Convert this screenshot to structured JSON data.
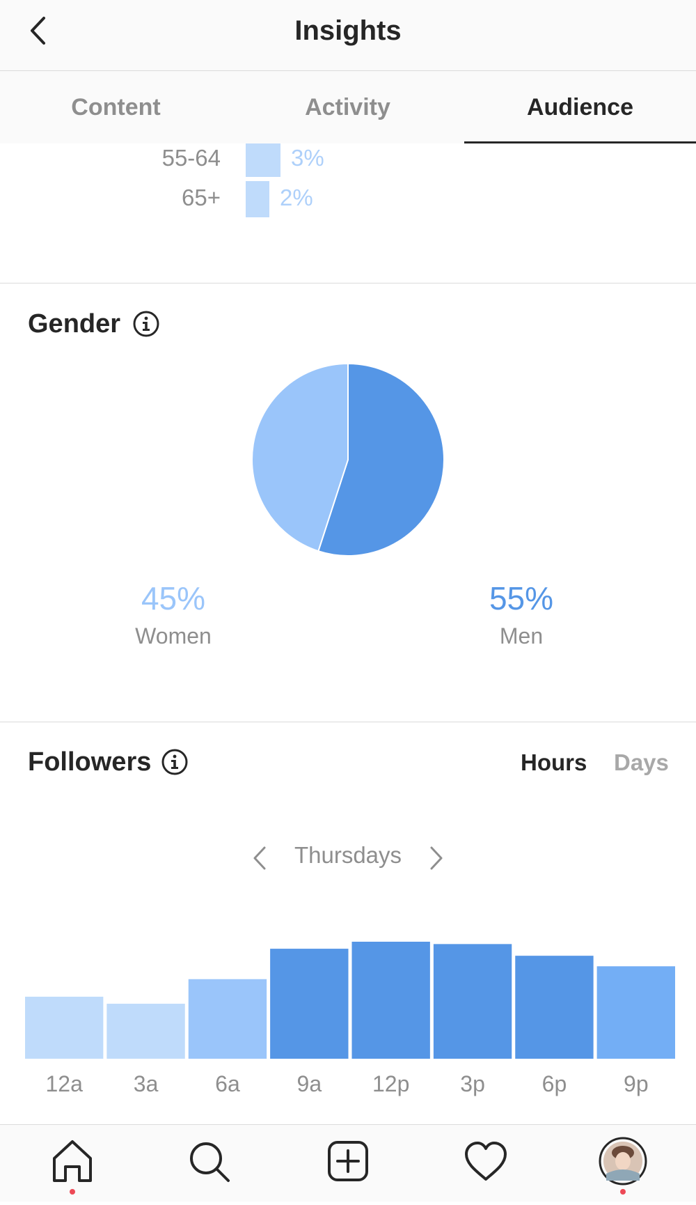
{
  "header": {
    "title": "Insights"
  },
  "tabs": [
    {
      "label": "Content"
    },
    {
      "label": "Activity"
    },
    {
      "label": "Audience",
      "active": true
    }
  ],
  "age_rows": [
    {
      "label": "55-64",
      "value": "3%"
    },
    {
      "label": "65+",
      "value": "2%"
    }
  ],
  "gender": {
    "title": "Gender",
    "women": {
      "pct": "45%",
      "label": "Women"
    },
    "men": {
      "pct": "55%",
      "label": "Men"
    }
  },
  "followers": {
    "title": "Followers",
    "toggle": {
      "hours": "Hours",
      "days": "Days",
      "selected": "Hours"
    },
    "day": "Thursdays"
  },
  "chart_data": [
    {
      "type": "pie",
      "categories": [
        "Women",
        "Men"
      ],
      "values": [
        45,
        55
      ],
      "colors": [
        "#9ac5fa",
        "#5596e6"
      ]
    },
    {
      "type": "bar",
      "categories": [
        "12a",
        "3a",
        "6a",
        "9a",
        "12p",
        "3p",
        "6p",
        "9p"
      ],
      "values": [
        53,
        47,
        68,
        94,
        100,
        98,
        88,
        79
      ],
      "colors": [
        "#bfdbfb",
        "#bfdbfb",
        "#9ac5fa",
        "#5596e6",
        "#5596e6",
        "#5596e6",
        "#5596e6",
        "#73aef5"
      ]
    }
  ],
  "colors": {
    "women": "#9ac5fa",
    "men": "#5596e6",
    "text_primary": "#262626",
    "text_secondary": "#8e8e8e",
    "notification_dot": "#ed4956"
  },
  "bottom_nav": [
    {
      "icon": "home-icon",
      "active": true
    },
    {
      "icon": "search-icon"
    },
    {
      "icon": "new-post-icon"
    },
    {
      "icon": "heart-icon"
    },
    {
      "icon": "profile-avatar"
    }
  ]
}
